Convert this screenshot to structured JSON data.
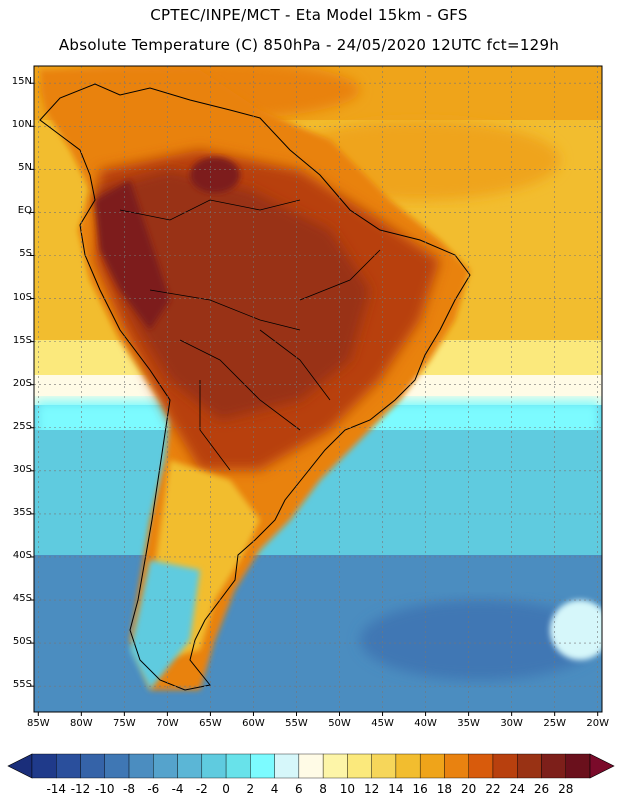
{
  "header": {
    "line1": "CPTEC/INPE/MCT -  Eta Model 15km - GFS",
    "line2": "Absolute Temperature (C) 850hPa - 24/05/2020 12UTC fct=129h"
  },
  "map": {
    "variable": "Absolute Temperature (C) 850hPa",
    "lat_labels": [
      "15N",
      "10N",
      "5N",
      "EQ",
      "5S",
      "10S",
      "15S",
      "20S",
      "25S",
      "30S",
      "35S",
      "40S",
      "45S",
      "50S",
      "55S"
    ],
    "lat_values": [
      15,
      10,
      5,
      0,
      -5,
      -10,
      -15,
      -20,
      -25,
      -30,
      -35,
      -40,
      -45,
      -50,
      -55
    ],
    "lon_labels": [
      "85W",
      "80W",
      "75W",
      "70W",
      "65W",
      "60W",
      "55W",
      "50W",
      "45W",
      "40W",
      "35W",
      "30W",
      "25W",
      "20W"
    ],
    "lon_values": [
      -85,
      -80,
      -75,
      -70,
      -65,
      -60,
      -55,
      -50,
      -45,
      -40,
      -35,
      -30,
      -25,
      -20
    ],
    "lat_range": [
      -58,
      17
    ],
    "lon_range": [
      -85.5,
      -19.5
    ]
  },
  "legend": {
    "labels": [
      "-14",
      "-12",
      "-10",
      "-8",
      "-6",
      "-4",
      "-2",
      "0",
      "2",
      "4",
      "6",
      "8",
      "10",
      "12",
      "14",
      "16",
      "18",
      "20",
      "22",
      "24",
      "26",
      "28"
    ],
    "colors": [
      "#1f3a8a",
      "#2a4f9c",
      "#3563a8",
      "#3f77b4",
      "#4b8dc0",
      "#55a3cc",
      "#5bb6d6",
      "#5fcbdf",
      "#68e2ea",
      "#7cfbff",
      "#d6f7fa",
      "#fffbe6",
      "#fdf5a8",
      "#fbe97c",
      "#f6d65a",
      "#f2bd2f",
      "#efa41a",
      "#e98210",
      "#d85b0c",
      "#b8400e",
      "#993214",
      "#7d1f1a",
      "#6a101c"
    ],
    "under_color": "#1a2e7a",
    "over_color": "#7a0a2a"
  }
}
